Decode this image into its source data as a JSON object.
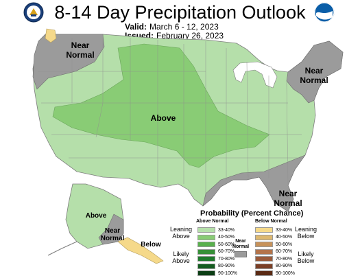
{
  "title": "8-14 Day Precipitation Outlook",
  "valid": {
    "label": "Valid:",
    "value": "March 6 - 12, 2023"
  },
  "issued": {
    "label": "Issued:",
    "value": "February 26, 2023"
  },
  "map_labels": {
    "near_normal_nw": "Near Normal",
    "near_normal_ne": "Near Normal",
    "above_center": "Above",
    "near_normal_se": "Near Normal",
    "ak_above": "Above",
    "ak_near_normal": "Near Normal",
    "ak_below": "Below"
  },
  "legend": {
    "title": "Probability (Percent Chance)",
    "above_header": "Above Normal",
    "below_header": "Below Normal",
    "near_normal": "Near Normal",
    "leaning_above": "Leaning Above",
    "likely_above": "Likely Above",
    "leaning_below": "Leaning Below",
    "likely_below": "Likely Below",
    "above": [
      {
        "range": "33-40%",
        "color": "#b5dfaa"
      },
      {
        "range": "40-50%",
        "color": "#89cc75"
      },
      {
        "range": "50-60%",
        "color": "#59b04d"
      },
      {
        "range": "60-70%",
        "color": "#379038"
      },
      {
        "range": "70-80%",
        "color": "#1f7a2c"
      },
      {
        "range": "80-90%",
        "color": "#145c20"
      },
      {
        "range": "90-100%",
        "color": "#0b3d14"
      }
    ],
    "below": [
      {
        "range": "33-40%",
        "color": "#f5d98a"
      },
      {
        "range": "40-50%",
        "color": "#ddb870"
      },
      {
        "range": "50-60%",
        "color": "#c7925a"
      },
      {
        "range": "60-70%",
        "color": "#b3744b"
      },
      {
        "range": "70-80%",
        "color": "#9a5a3a"
      },
      {
        "range": "80-90%",
        "color": "#7b3f26"
      },
      {
        "range": "90-100%",
        "color": "#5a2a14"
      }
    ],
    "near_normal_color": "#9b9b9b"
  },
  "colors": {
    "above_33_40": "#b5dfaa",
    "above_40_50": "#89cc75",
    "near_normal": "#9b9b9b",
    "below_33_40": "#f5d98a",
    "water": "#ffffff"
  },
  "icons": {
    "left_logo": "department-of-commerce-seal-icon",
    "right_logo": "noaa-logo-icon"
  }
}
